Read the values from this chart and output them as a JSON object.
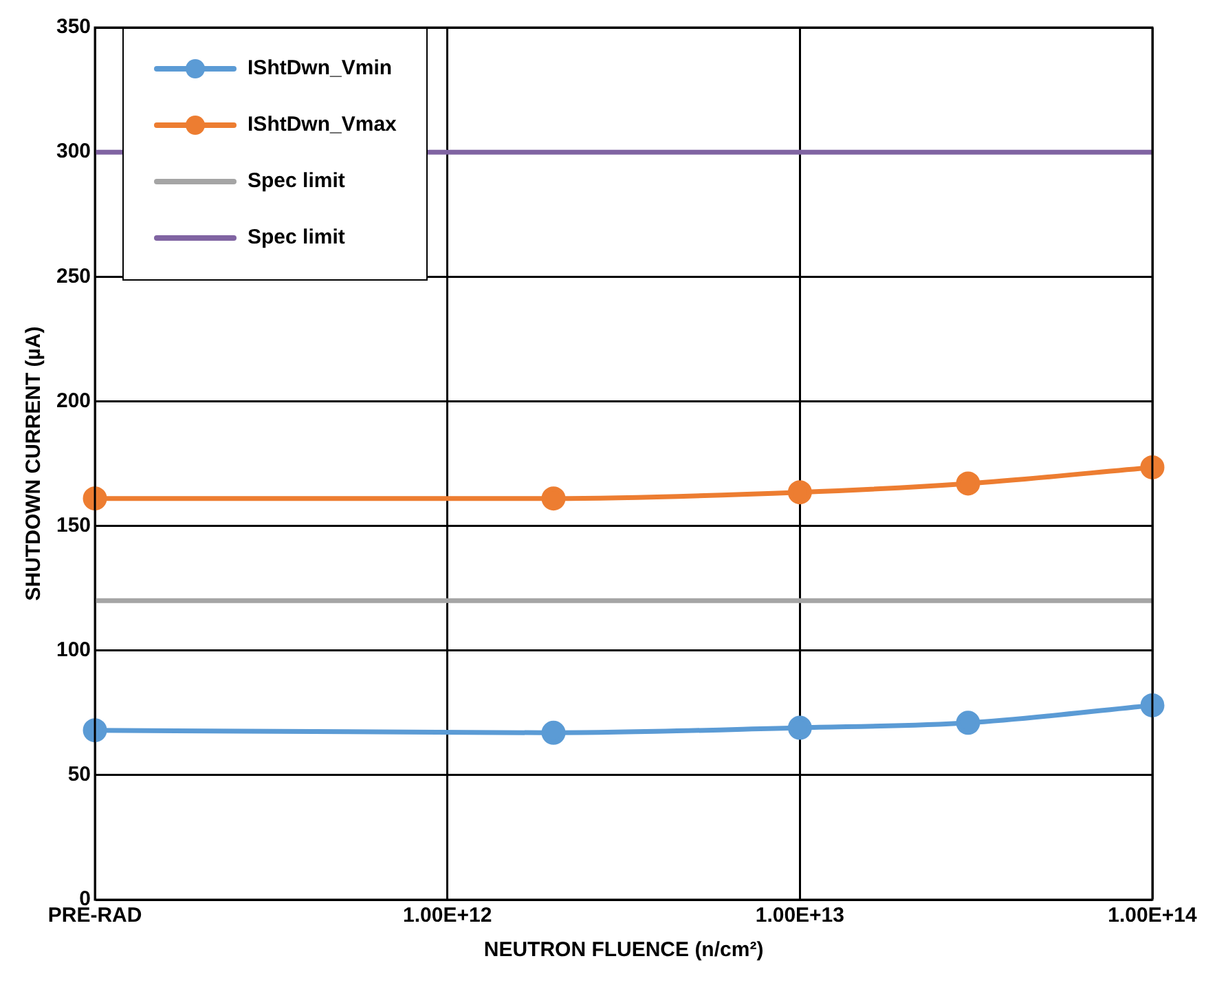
{
  "chart_data": {
    "type": "line",
    "xlabel": "NEUTRON FLUENCE (n/cm²)",
    "ylabel": "SHUTDOWN CURRENT (µA)",
    "x": [
      100000000000.0,
      2000000000000.0,
      10000000000000.0,
      30000000000000.0,
      100000000000000.0
    ],
    "series": [
      {
        "name": "IShtDwn_Vmin",
        "color": "#5b9bd5",
        "values": [
          68,
          67,
          69,
          71,
          78
        ]
      },
      {
        "name": "IShtDwn_Vmax",
        "color": "#ed7d31",
        "values": [
          161,
          161,
          163.5,
          167,
          173.5
        ]
      },
      {
        "name": "Spec limit",
        "color": "#a5a5a5",
        "values": [
          120,
          120,
          120,
          120,
          120
        ],
        "marker": "none"
      },
      {
        "name": "Spec limit",
        "color": "#8064a2",
        "values": [
          300,
          300,
          300,
          300,
          300
        ],
        "marker": "none"
      }
    ],
    "log": "x",
    "xlim": [
      100000000000.0,
      100000000000000.0
    ],
    "xticks": [
      {
        "value": 100000000000.0,
        "label": "PRE-RAD"
      },
      {
        "value": 1000000000000.0,
        "label": "1.00E+12"
      },
      {
        "value": 10000000000000.0,
        "label": "1.00E+13"
      },
      {
        "value": 100000000000000.0,
        "label": "1.00E+14"
      }
    ],
    "ylim": [
      0,
      350
    ],
    "yticks": [
      0,
      50,
      100,
      150,
      200,
      250,
      300,
      350
    ],
    "grid": true,
    "legend": "top left",
    "marker": "circle",
    "line_style": "solid"
  }
}
